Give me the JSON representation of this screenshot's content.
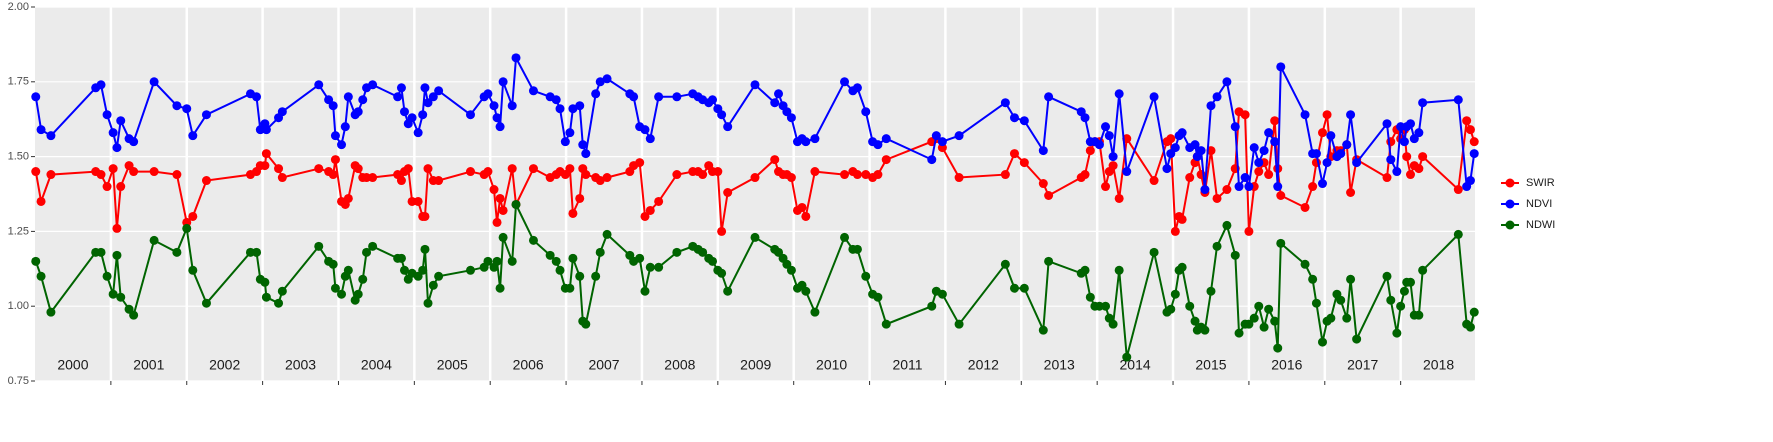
{
  "chart_data": {
    "type": "line",
    "x": [
      2000.01,
      2000.08,
      2000.21,
      2000.8,
      2000.87,
      2000.95,
      2001.03,
      2001.08,
      2001.13,
      2001.24,
      2001.3,
      2001.57,
      2001.87,
      2002.0,
      2002.08,
      2002.26,
      2002.84,
      2002.92,
      2002.97,
      2003.03,
      2003.05,
      2003.21,
      2003.26,
      2003.74,
      2003.87,
      2003.93,
      2003.96,
      2004.04,
      2004.09,
      2004.13,
      2004.22,
      2004.26,
      2004.32,
      2004.37,
      2004.45,
      2004.78,
      2004.83,
      2004.87,
      2004.92,
      2004.97,
      2005.05,
      2005.11,
      2005.14,
      2005.18,
      2005.25,
      2005.32,
      2005.74,
      2005.92,
      2005.97,
      2006.05,
      2006.09,
      2006.13,
      2006.17,
      2006.29,
      2006.34,
      2006.57,
      2006.79,
      2006.87,
      2006.92,
      2006.99,
      2007.05,
      2007.09,
      2007.18,
      2007.22,
      2007.26,
      2007.39,
      2007.45,
      2007.54,
      2007.84,
      2007.89,
      2007.97,
      2008.04,
      2008.11,
      2008.22,
      2008.46,
      2008.67,
      2008.74,
      2008.8,
      2008.88,
      2008.93,
      2009.0,
      2009.05,
      2009.13,
      2009.49,
      2009.75,
      2009.8,
      2009.86,
      2009.91,
      2009.97,
      2010.05,
      2010.11,
      2010.16,
      2010.28,
      2010.67,
      2010.78,
      2010.84,
      2010.95,
      2011.04,
      2011.11,
      2011.22,
      2011.82,
      2011.88,
      2011.96,
      2012.18,
      2012.79,
      2012.91,
      2013.04,
      2013.29,
      2013.36,
      2013.79,
      2013.84,
      2013.91,
      2013.97,
      2014.03,
      2014.11,
      2014.16,
      2014.21,
      2014.29,
      2014.39,
      2014.75,
      2014.92,
      2014.97,
      2015.03,
      2015.08,
      2015.12,
      2015.22,
      2015.29,
      2015.32,
      2015.37,
      2015.42,
      2015.5,
      2015.58,
      2015.71,
      2015.82,
      2015.87,
      2015.95,
      2016.0,
      2016.07,
      2016.13,
      2016.2,
      2016.26,
      2016.34,
      2016.38,
      2016.42,
      2016.74,
      2016.84,
      2016.89,
      2016.97,
      2017.03,
      2017.08,
      2017.16,
      2017.21,
      2017.29,
      2017.34,
      2017.42,
      2017.82,
      2017.87,
      2017.95,
      2018.0,
      2018.05,
      2018.08,
      2018.13,
      2018.18,
      2018.24,
      2018.29,
      2018.76,
      2018.87,
      2018.92,
      2018.97
    ],
    "series": [
      {
        "name": "SWIR",
        "color": "#ff0000",
        "values": [
          1.45,
          1.35,
          1.44,
          1.45,
          1.44,
          1.4,
          1.46,
          1.26,
          1.4,
          1.47,
          1.45,
          1.45,
          1.44,
          1.28,
          1.3,
          1.42,
          1.44,
          1.45,
          1.47,
          1.47,
          1.51,
          1.46,
          1.43,
          1.46,
          1.45,
          1.44,
          1.49,
          1.35,
          1.34,
          1.36,
          1.47,
          1.46,
          1.43,
          1.43,
          1.43,
          1.44,
          1.42,
          1.45,
          1.46,
          1.35,
          1.35,
          1.3,
          1.3,
          1.46,
          1.42,
          1.42,
          1.45,
          1.44,
          1.45,
          1.39,
          1.28,
          1.36,
          1.32,
          1.46,
          1.34,
          1.46,
          1.43,
          1.44,
          1.45,
          1.44,
          1.46,
          1.31,
          1.36,
          1.46,
          1.44,
          1.43,
          1.42,
          1.43,
          1.45,
          1.47,
          1.48,
          1.3,
          1.32,
          1.35,
          1.44,
          1.45,
          1.45,
          1.44,
          1.47,
          1.45,
          1.45,
          1.25,
          1.38,
          1.43,
          1.49,
          1.45,
          1.44,
          1.44,
          1.43,
          1.32,
          1.33,
          1.3,
          1.45,
          1.44,
          1.45,
          1.44,
          1.44,
          1.43,
          1.44,
          1.49,
          1.55,
          1.56,
          1.53,
          1.43,
          1.44,
          1.51,
          1.48,
          1.41,
          1.37,
          1.43,
          1.44,
          1.52,
          1.55,
          1.55,
          1.4,
          1.45,
          1.47,
          1.36,
          1.56,
          1.42,
          1.55,
          1.56,
          1.25,
          1.3,
          1.29,
          1.43,
          1.48,
          1.5,
          1.44,
          1.38,
          1.52,
          1.36,
          1.39,
          1.46,
          1.65,
          1.64,
          1.25,
          1.4,
          1.45,
          1.48,
          1.44,
          1.62,
          1.46,
          1.37,
          1.33,
          1.4,
          1.48,
          1.58,
          1.64,
          1.5,
          1.52,
          1.52,
          1.54,
          1.38,
          1.49,
          1.43,
          1.55,
          1.59,
          1.56,
          1.59,
          1.5,
          1.44,
          1.47,
          1.46,
          1.5,
          1.39,
          1.62,
          1.59,
          1.55
        ]
      },
      {
        "name": "NDVI",
        "color": "#0000ff",
        "values": [
          1.7,
          1.59,
          1.57,
          1.73,
          1.74,
          1.64,
          1.58,
          1.53,
          1.62,
          1.56,
          1.55,
          1.75,
          1.67,
          1.66,
          1.57,
          1.64,
          1.71,
          1.7,
          1.59,
          1.61,
          1.59,
          1.63,
          1.65,
          1.74,
          1.69,
          1.67,
          1.57,
          1.54,
          1.6,
          1.7,
          1.64,
          1.65,
          1.69,
          1.73,
          1.74,
          1.7,
          1.73,
          1.65,
          1.61,
          1.63,
          1.58,
          1.64,
          1.73,
          1.68,
          1.7,
          1.72,
          1.64,
          1.7,
          1.71,
          1.67,
          1.63,
          1.6,
          1.75,
          1.67,
          1.83,
          1.72,
          1.7,
          1.69,
          1.66,
          1.55,
          1.58,
          1.66,
          1.67,
          1.54,
          1.51,
          1.71,
          1.75,
          1.76,
          1.71,
          1.7,
          1.6,
          1.59,
          1.56,
          1.7,
          1.7,
          1.71,
          1.7,
          1.69,
          1.68,
          1.69,
          1.66,
          1.64,
          1.6,
          1.74,
          1.68,
          1.71,
          1.67,
          1.65,
          1.63,
          1.55,
          1.56,
          1.55,
          1.56,
          1.75,
          1.72,
          1.73,
          1.65,
          1.55,
          1.54,
          1.56,
          1.49,
          1.57,
          1.55,
          1.57,
          1.68,
          1.63,
          1.62,
          1.52,
          1.7,
          1.65,
          1.63,
          1.55,
          1.55,
          1.54,
          1.6,
          1.57,
          1.5,
          1.71,
          1.45,
          1.7,
          1.46,
          1.51,
          1.53,
          1.57,
          1.58,
          1.53,
          1.54,
          1.5,
          1.52,
          1.39,
          1.67,
          1.7,
          1.75,
          1.6,
          1.4,
          1.43,
          1.4,
          1.53,
          1.48,
          1.52,
          1.58,
          1.55,
          1.4,
          1.8,
          1.64,
          1.51,
          1.51,
          1.41,
          1.48,
          1.57,
          1.5,
          1.51,
          1.54,
          1.64,
          1.48,
          1.61,
          1.49,
          1.45,
          1.6,
          1.55,
          1.6,
          1.61,
          1.56,
          1.58,
          1.68,
          1.69,
          1.4,
          1.42,
          1.51
        ]
      },
      {
        "name": "NDWI",
        "color": "#006400",
        "values": [
          1.15,
          1.1,
          0.98,
          1.18,
          1.18,
          1.1,
          1.04,
          1.17,
          1.03,
          0.99,
          0.97,
          1.22,
          1.18,
          1.26,
          1.12,
          1.01,
          1.18,
          1.18,
          1.09,
          1.08,
          1.03,
          1.01,
          1.05,
          1.2,
          1.15,
          1.14,
          1.06,
          1.04,
          1.1,
          1.12,
          1.02,
          1.04,
          1.09,
          1.18,
          1.2,
          1.16,
          1.16,
          1.12,
          1.09,
          1.11,
          1.1,
          1.12,
          1.19,
          1.01,
          1.07,
          1.1,
          1.12,
          1.13,
          1.15,
          1.13,
          1.15,
          1.06,
          1.23,
          1.15,
          1.34,
          1.22,
          1.17,
          1.15,
          1.12,
          1.06,
          1.06,
          1.16,
          1.1,
          0.95,
          0.94,
          1.1,
          1.18,
          1.24,
          1.17,
          1.15,
          1.16,
          1.05,
          1.13,
          1.13,
          1.18,
          1.2,
          1.19,
          1.18,
          1.16,
          1.15,
          1.12,
          1.11,
          1.05,
          1.23,
          1.19,
          1.18,
          1.16,
          1.14,
          1.12,
          1.06,
          1.07,
          1.05,
          0.98,
          1.23,
          1.19,
          1.19,
          1.1,
          1.04,
          1.03,
          0.94,
          1.0,
          1.05,
          1.04,
          0.94,
          1.14,
          1.06,
          1.06,
          0.92,
          1.15,
          1.11,
          1.12,
          1.03,
          1.0,
          1.0,
          1.0,
          0.96,
          0.94,
          1.12,
          0.83,
          1.18,
          0.98,
          0.99,
          1.04,
          1.12,
          1.13,
          1.0,
          0.95,
          0.92,
          0.93,
          0.92,
          1.05,
          1.2,
          1.27,
          1.17,
          0.91,
          0.94,
          0.94,
          0.96,
          1.0,
          0.93,
          0.99,
          0.95,
          0.86,
          1.21,
          1.14,
          1.09,
          1.01,
          0.88,
          0.95,
          0.96,
          1.04,
          1.02,
          0.96,
          1.09,
          0.89,
          1.1,
          1.02,
          0.91,
          1.0,
          1.05,
          1.08,
          1.08,
          0.97,
          0.97,
          1.12,
          1.24,
          0.94,
          0.93,
          0.98
        ]
      }
    ],
    "xlim": [
      2000,
      2018.98
    ],
    "xticks": [
      {
        "value": 2000.5,
        "label": "2000"
      },
      {
        "value": 2001.5,
        "label": "2001"
      },
      {
        "value": 2002.5,
        "label": "2002"
      },
      {
        "value": 2003.5,
        "label": "2003"
      },
      {
        "value": 2004.5,
        "label": "2004"
      },
      {
        "value": 2005.5,
        "label": "2005"
      },
      {
        "value": 2006.5,
        "label": "2006"
      },
      {
        "value": 2007.5,
        "label": "2007"
      },
      {
        "value": 2008.5,
        "label": "2008"
      },
      {
        "value": 2009.5,
        "label": "2009"
      },
      {
        "value": 2010.5,
        "label": "2010"
      },
      {
        "value": 2011.5,
        "label": "2011"
      },
      {
        "value": 2012.5,
        "label": "2012"
      },
      {
        "value": 2013.5,
        "label": "2013"
      },
      {
        "value": 2014.5,
        "label": "2014"
      },
      {
        "value": 2015.5,
        "label": "2015"
      },
      {
        "value": 2016.5,
        "label": "2016"
      },
      {
        "value": 2017.5,
        "label": "2017"
      },
      {
        "value": 2018.5,
        "label": "2018"
      }
    ],
    "xgrid": [
      2001,
      2002,
      2003,
      2004,
      2005,
      2006,
      2007,
      2008,
      2009,
      2010,
      2011,
      2012,
      2013,
      2014,
      2015,
      2016,
      2017,
      2018
    ],
    "ylim": [
      0.75,
      2
    ],
    "yticks": [
      {
        "value": 0.75,
        "label": "0.75"
      },
      {
        "value": 1,
        "label": "1.00"
      },
      {
        "value": 1.25,
        "label": "1.25"
      },
      {
        "value": 1.5,
        "label": "1.50"
      },
      {
        "value": 1.75,
        "label": "1.75"
      },
      {
        "value": 2,
        "label": "2.00"
      }
    ],
    "grid": true,
    "legend": "right"
  }
}
